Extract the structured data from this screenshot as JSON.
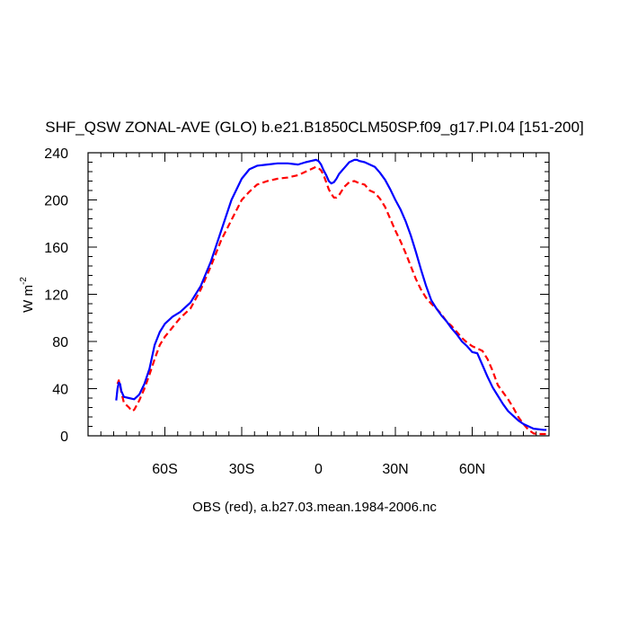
{
  "chart_data": {
    "type": "line",
    "title": "SHF_QSW ZONAL-AVE (GLO) b.e21.B1850CLM50SP.f09_g17.PI.04 [151-200]",
    "xlabel": "OBS (red), a.b27.03.mean.1984-2006.nc",
    "ylabel_main": "W m",
    "ylabel_sup": "-2",
    "xlim": [
      -90,
      90
    ],
    "ylim": [
      0,
      240
    ],
    "x_ticks": [
      {
        "value": -60,
        "label": "60S"
      },
      {
        "value": -30,
        "label": "30S"
      },
      {
        "value": 0,
        "label": "0"
      },
      {
        "value": 30,
        "label": "30N"
      },
      {
        "value": 60,
        "label": "60N"
      }
    ],
    "y_ticks": [
      {
        "value": 0,
        "label": "0"
      },
      {
        "value": 40,
        "label": "40"
      },
      {
        "value": 80,
        "label": "80"
      },
      {
        "value": 120,
        "label": "120"
      },
      {
        "value": 160,
        "label": "160"
      },
      {
        "value": 200,
        "label": "200"
      },
      {
        "value": 240,
        "label": "240"
      }
    ],
    "series": [
      {
        "color": "#0000ff",
        "dash": "solid",
        "x": [
          -79,
          -78.5,
          -78,
          -77.5,
          -77,
          -76,
          -74,
          -72,
          -70,
          -68,
          -66,
          -64,
          -62,
          -60,
          -57,
          -54,
          -50,
          -46,
          -42,
          -38,
          -34,
          -30,
          -27,
          -24,
          -20,
          -16,
          -12,
          -8,
          -5,
          -3,
          -1,
          0,
          1,
          2,
          3,
          4,
          5,
          6,
          7,
          8,
          10,
          12,
          14,
          15,
          16,
          18,
          20,
          22,
          24,
          26,
          28,
          30,
          32,
          34,
          36,
          38,
          40,
          42,
          44,
          46,
          48,
          50,
          52,
          54,
          56,
          58,
          60,
          62,
          64,
          66,
          68,
          70,
          72,
          74,
          76,
          78,
          80,
          82,
          84,
          86,
          88,
          89
        ],
        "y": [
          30,
          40,
          45,
          44,
          38,
          33,
          32,
          31,
          35,
          44,
          57,
          77,
          88,
          95,
          101,
          105,
          113,
          127,
          148,
          174,
          200,
          218,
          226,
          229,
          230,
          231,
          231,
          230,
          232,
          233,
          234,
          233,
          230,
          225,
          221,
          216,
          214,
          215,
          218,
          222,
          227,
          232,
          234,
          234,
          233,
          232,
          230,
          228,
          223,
          217,
          209,
          200,
          192,
          182,
          170,
          156,
          141,
          127,
          115,
          108,
          102,
          97,
          91,
          86,
          80,
          76,
          71,
          70,
          60,
          50,
          41,
          34,
          27,
          21,
          17,
          13,
          10,
          8,
          6,
          5.5,
          5,
          5
        ]
      },
      {
        "color": "#ff0000",
        "dash": "dashed",
        "x": [
          -78.5,
          -78,
          -77,
          -76,
          -74,
          -73,
          -72,
          -70,
          -68,
          -66,
          -64,
          -62,
          -60,
          -57,
          -54,
          -50,
          -46,
          -42,
          -38,
          -34,
          -30,
          -27,
          -24,
          -20,
          -16,
          -12,
          -8,
          -5,
          -3,
          -1,
          0,
          1,
          2,
          3,
          4,
          5,
          6,
          7,
          8,
          10,
          12,
          14,
          16,
          18,
          20,
          22,
          24,
          26,
          28,
          30,
          32,
          34,
          36,
          38,
          40,
          42,
          44,
          46,
          48,
          50,
          52,
          54,
          56,
          58,
          60,
          62,
          64,
          66,
          68,
          70,
          72,
          74,
          76,
          78,
          80,
          82,
          84,
          86,
          88,
          89
        ],
        "y": [
          44,
          47,
          37,
          28,
          24,
          21,
          22,
          30,
          40,
          52,
          65,
          77,
          84,
          92,
          100,
          108,
          124,
          144,
          166,
          183,
          200,
          207,
          213,
          216,
          218,
          219,
          221,
          224,
          226,
          228,
          227,
          225,
          221,
          215,
          209,
          205,
          202,
          202,
          204,
          211,
          215,
          216,
          214,
          213,
          208,
          206,
          201,
          194,
          184,
          174,
          165,
          155,
          144,
          133,
          124,
          117,
          112,
          108,
          103,
          97,
          93,
          88,
          83,
          79,
          76,
          74,
          72,
          65,
          55,
          43,
          37,
          31,
          24,
          16,
          10,
          5,
          2,
          1.5,
          1.5,
          1.5
        ]
      }
    ]
  }
}
